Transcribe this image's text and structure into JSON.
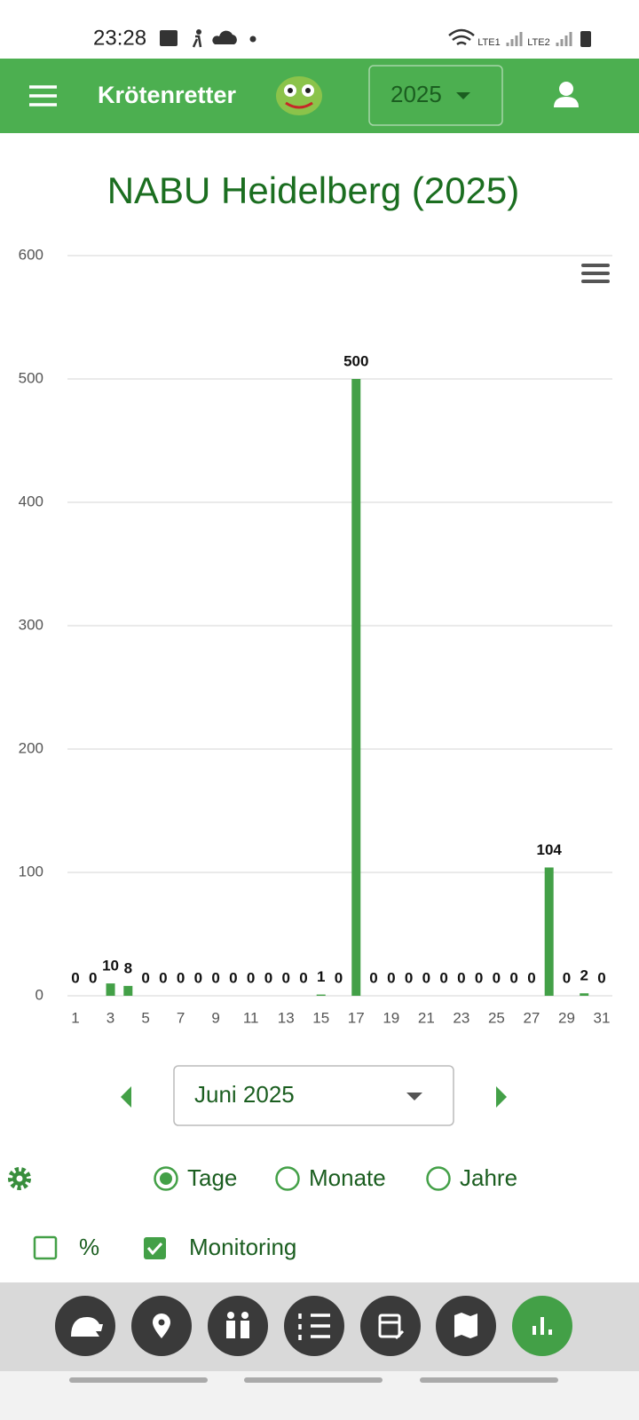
{
  "status_bar": {
    "time": "23:28",
    "sim1": "LTE1",
    "sim2": "LTE2"
  },
  "app_bar": {
    "title": "Krötenretter",
    "year": "2025"
  },
  "chart_data": {
    "type": "bar",
    "title": "NABU Heidelberg (2025)",
    "categories": [
      "1",
      null,
      "3",
      null,
      "5",
      null,
      "7",
      null,
      "9",
      null,
      "11",
      null,
      "13",
      null,
      "15",
      null,
      "17",
      null,
      "19",
      null,
      "21",
      null,
      "23",
      null,
      "25",
      null,
      "27",
      null,
      "29",
      null,
      "31"
    ],
    "values": [
      0,
      0,
      10,
      8,
      0,
      0,
      0,
      0,
      0,
      0,
      0,
      0,
      0,
      0,
      1,
      0,
      500,
      0,
      0,
      0,
      0,
      0,
      0,
      0,
      0,
      0,
      0,
      104,
      0,
      2,
      0
    ],
    "color": "#43a047",
    "ylim": [
      0,
      600
    ],
    "yticks": [
      0,
      100,
      200,
      300,
      400,
      500,
      600
    ],
    "grid": true
  },
  "controls": {
    "month": "Juni 2025",
    "view_options": [
      {
        "label": "Tage",
        "selected": true
      },
      {
        "label": "Monate",
        "selected": false
      },
      {
        "label": "Jahre",
        "selected": false
      }
    ],
    "checkboxes": [
      {
        "label": "%",
        "checked": false
      },
      {
        "label": "Monitoring",
        "checked": true
      }
    ]
  }
}
